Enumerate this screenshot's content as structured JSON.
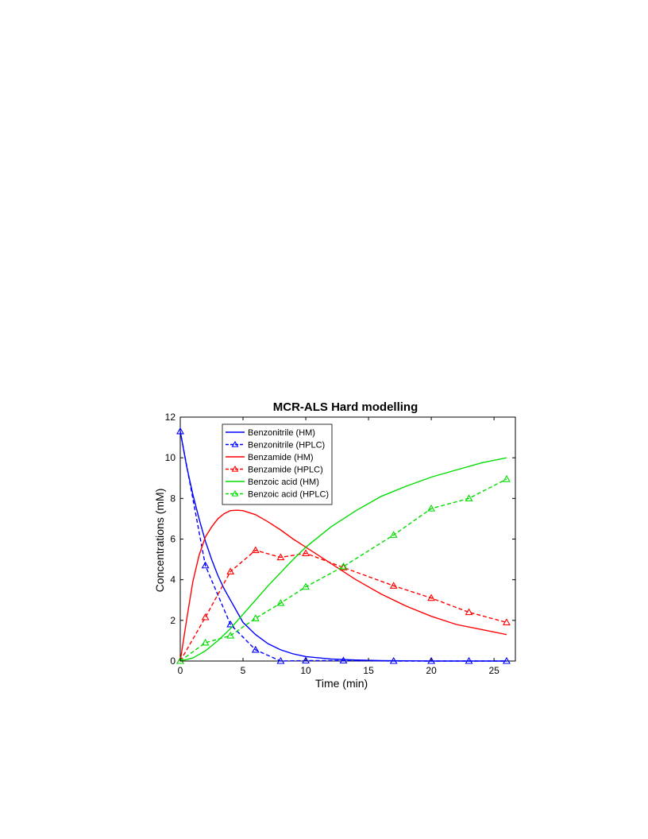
{
  "chart_data": {
    "type": "line",
    "title": "MCR-ALS Hard modelling",
    "xlabel": "Time (min)",
    "ylabel": "Concentrations (mM)",
    "xlim": [
      0,
      26.7
    ],
    "ylim": [
      0,
      12
    ],
    "xticks": [
      0,
      5,
      10,
      15,
      20,
      25
    ],
    "yticks": [
      0,
      2,
      4,
      6,
      8,
      10,
      12
    ],
    "grid": false,
    "legend_position": "top-left",
    "series": [
      {
        "name": "Benzonitrile (HM)",
        "color": "#0000ff",
        "style": "solid",
        "marker": "none",
        "x": [
          0,
          0.5,
          1,
          1.5,
          2,
          2.5,
          3,
          3.5,
          4,
          5,
          6,
          7,
          8,
          9,
          10,
          12,
          14,
          16,
          18,
          20,
          22,
          24,
          26
        ],
        "y": [
          11.3,
          9.6,
          8.2,
          7.0,
          5.9,
          5.0,
          4.2,
          3.55,
          3.0,
          1.9,
          1.3,
          0.85,
          0.55,
          0.35,
          0.22,
          0.1,
          0.05,
          0.02,
          0.01,
          0.0,
          0.0,
          0.0,
          0.0
        ]
      },
      {
        "name": "Benzonitrile (HPLC)",
        "color": "#0000ff",
        "style": "dashed",
        "marker": "triangle",
        "x": [
          0,
          2,
          4,
          6,
          8,
          10,
          13,
          17,
          20,
          23,
          26
        ],
        "y": [
          11.3,
          4.7,
          1.8,
          0.55,
          0.0,
          0.02,
          0.02,
          0.0,
          0.0,
          0.0,
          0.0
        ]
      },
      {
        "name": "Benzamide (HM)",
        "color": "#ff0000",
        "style": "solid",
        "marker": "none",
        "x": [
          0,
          0.5,
          1,
          1.5,
          2,
          2.5,
          3,
          3.5,
          4,
          4.5,
          5,
          6,
          7,
          8,
          9,
          10,
          12,
          14,
          16,
          18,
          20,
          22,
          24,
          26
        ],
        "y": [
          0.0,
          2.0,
          3.9,
          5.2,
          6.1,
          6.6,
          7.0,
          7.25,
          7.4,
          7.42,
          7.4,
          7.2,
          6.85,
          6.45,
          6.0,
          5.6,
          4.8,
          4.0,
          3.3,
          2.7,
          2.2,
          1.8,
          1.55,
          1.3
        ]
      },
      {
        "name": "Benzamide (HPLC)",
        "color": "#ff0000",
        "style": "dashed",
        "marker": "triangle",
        "x": [
          0,
          2,
          4,
          6,
          8,
          10,
          13,
          17,
          20,
          23,
          26
        ],
        "y": [
          0.0,
          2.15,
          4.4,
          5.45,
          5.1,
          5.3,
          4.6,
          3.7,
          3.1,
          2.4,
          1.9
        ]
      },
      {
        "name": "Benzoic acid (HM)",
        "color": "#00dd00",
        "style": "solid",
        "marker": "none",
        "x": [
          0,
          1,
          2,
          3,
          4,
          5,
          6,
          7,
          8,
          9,
          10,
          12,
          14,
          16,
          18,
          20,
          22,
          24,
          26
        ],
        "y": [
          0.0,
          0.15,
          0.5,
          1.0,
          1.6,
          2.3,
          3.0,
          3.7,
          4.35,
          5.0,
          5.6,
          6.6,
          7.4,
          8.1,
          8.6,
          9.05,
          9.4,
          9.75,
          10.0
        ]
      },
      {
        "name": "Benzoic acid (HPLC)",
        "color": "#00dd00",
        "style": "dashed",
        "marker": "triangle",
        "x": [
          0,
          2,
          4,
          6,
          8,
          10,
          13,
          17,
          20,
          23,
          26
        ],
        "y": [
          0.0,
          0.9,
          1.25,
          2.1,
          2.85,
          3.65,
          4.65,
          6.2,
          7.5,
          8.0,
          8.95
        ]
      }
    ]
  }
}
